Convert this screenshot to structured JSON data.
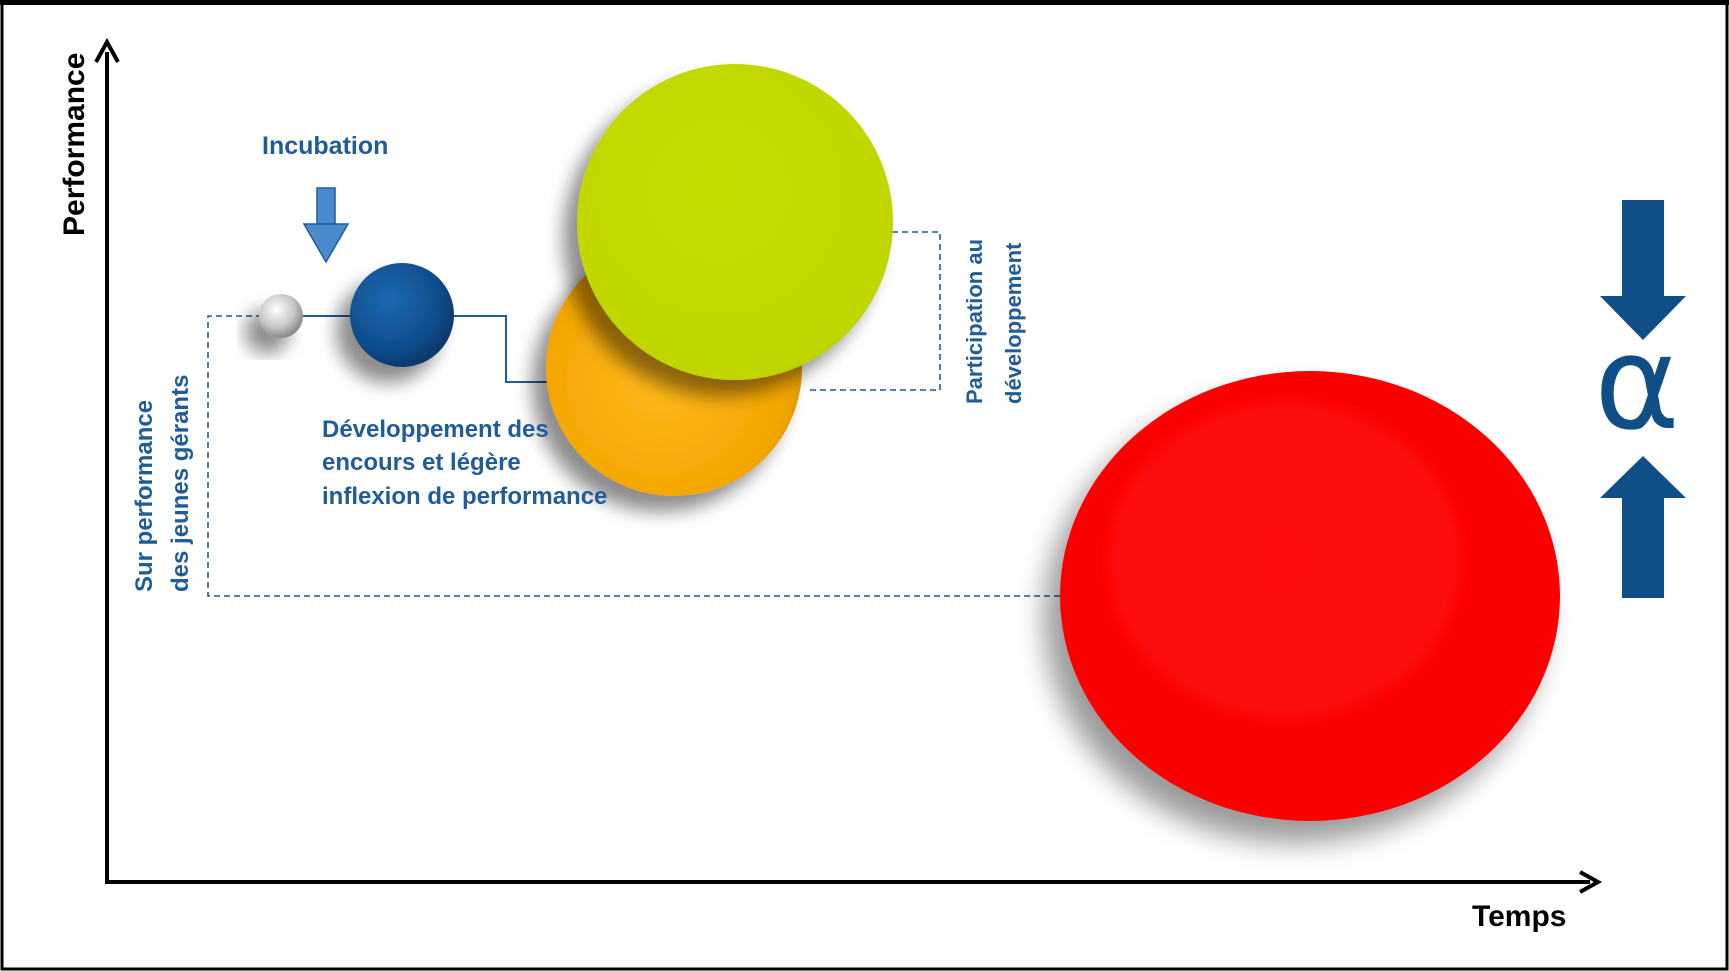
{
  "axes": {
    "y_label": "Performance",
    "x_label": "Temps"
  },
  "stages": {
    "incubation": "Incubation",
    "developpement_line1": "Développement  des",
    "developpement_line2": "encours et légère",
    "developpement_line3": "inflexion de performance",
    "participation_line1": "Participation au",
    "participation_line2": "développement",
    "surperformance_line1": "Sur performance",
    "surperformance_line2": "des  jeunes gérants"
  },
  "alpha": {
    "symbol": "α"
  },
  "colors": {
    "frame": "#000000",
    "text_blue": "#1F5C99",
    "dashed_line": "#1F5C99",
    "bubble_grey": "#C8C8C8",
    "bubble_blue": "#0E4C8A",
    "bubble_orange": "#F5A800",
    "bubble_green": "#C2D800",
    "bubble_red": "#FF0000",
    "arrow_blue": "#0F4E86",
    "alpha_blue": "#0F4E86"
  }
}
